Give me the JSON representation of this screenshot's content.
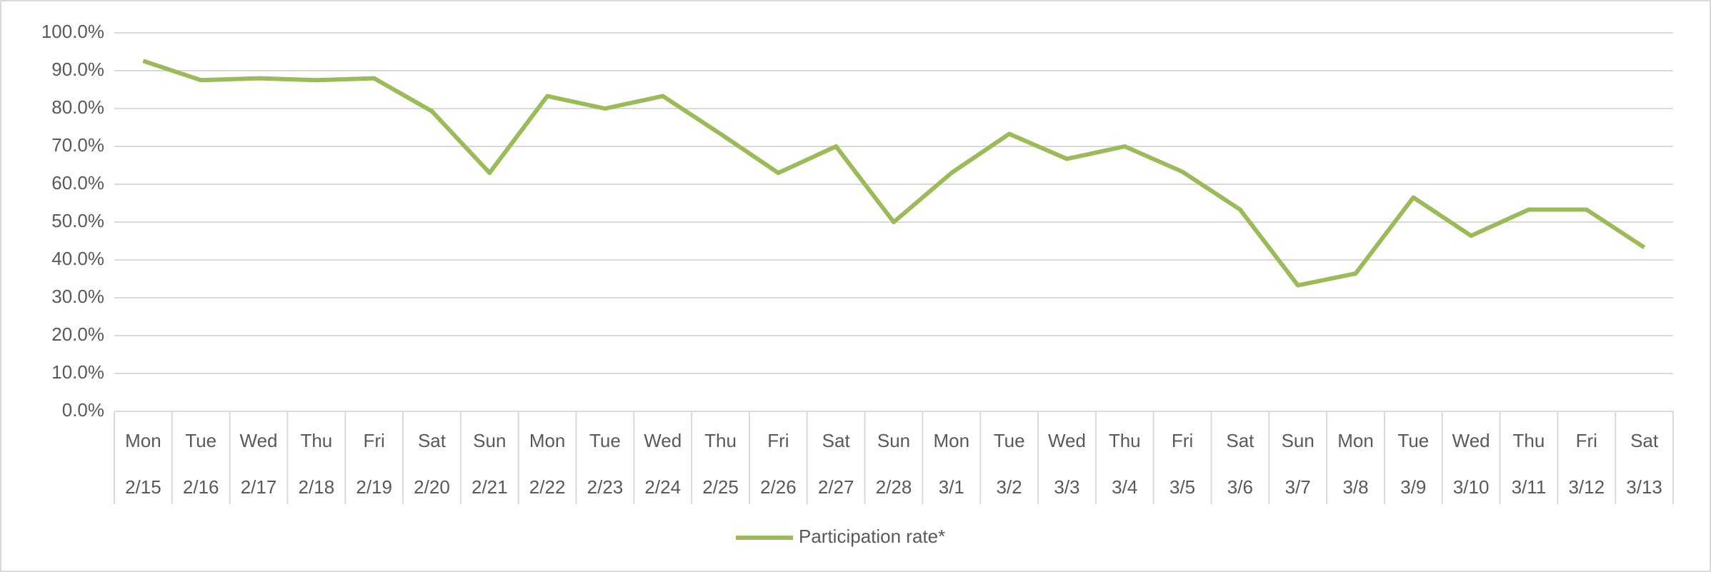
{
  "chart_data": {
    "type": "line",
    "categories": [
      "2/15",
      "2/16",
      "2/17",
      "2/18",
      "2/19",
      "2/20",
      "2/21",
      "2/22",
      "2/23",
      "2/24",
      "2/25",
      "2/26",
      "2/27",
      "2/28",
      "3/1",
      "3/2",
      "3/3",
      "3/4",
      "3/5",
      "3/6",
      "3/7",
      "3/8",
      "3/9",
      "3/10",
      "3/11",
      "3/12",
      "3/13"
    ],
    "weekdays": [
      "Mon",
      "Tue",
      "Wed",
      "Thu",
      "Fri",
      "Sat",
      "Sun",
      "Mon",
      "Tue",
      "Wed",
      "Thu",
      "Fri",
      "Sat",
      "Sun",
      "Mon",
      "Tue",
      "Wed",
      "Thu",
      "Fri",
      "Sat",
      "Sun",
      "Mon",
      "Tue",
      "Wed",
      "Thu",
      "Fri",
      "Sat"
    ],
    "series": [
      {
        "name": "Participation rate*",
        "color": "#9bbb59",
        "values": [
          92.6,
          87.5,
          88.0,
          87.5,
          88.0,
          79.3,
          63.0,
          83.3,
          80.0,
          83.3,
          73.3,
          63.0,
          70.0,
          50.0,
          63.0,
          73.3,
          66.7,
          70.0,
          63.3,
          53.3,
          33.3,
          36.4,
          56.5,
          46.4,
          53.3,
          53.3,
          43.3
        ]
      }
    ],
    "ylim": [
      0,
      100
    ],
    "yticks": [
      {
        "value": 0,
        "label": "0.0%"
      },
      {
        "value": 10,
        "label": "10.0%"
      },
      {
        "value": 20,
        "label": "20.0%"
      },
      {
        "value": 30,
        "label": "30.0%"
      },
      {
        "value": 40,
        "label": "40.0%"
      },
      {
        "value": 50,
        "label": "50.0%"
      },
      {
        "value": 60,
        "label": "60.0%"
      },
      {
        "value": 70,
        "label": "70.0%"
      },
      {
        "value": 80,
        "label": "80.0%"
      },
      {
        "value": 90,
        "label": "90.0%"
      },
      {
        "value": 100,
        "label": "100.0%"
      }
    ],
    "grid": true,
    "legend": "bottom"
  }
}
